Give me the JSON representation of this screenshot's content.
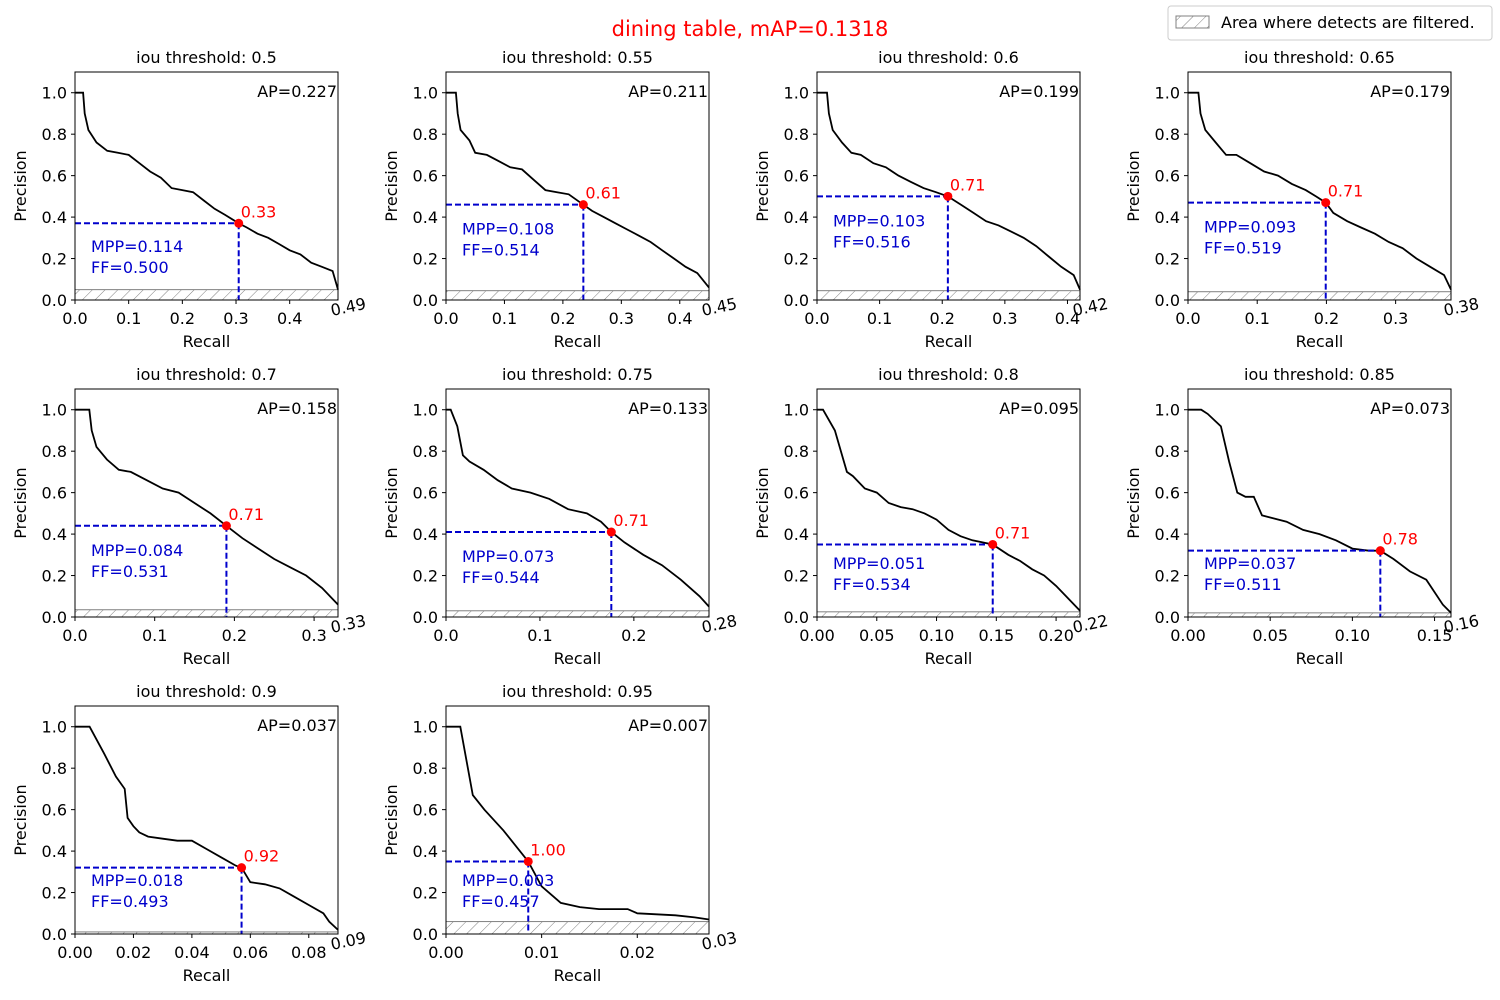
{
  "figure": {
    "title": "dining table, mAP=0.1318",
    "title_color": "#ff0000",
    "legend": {
      "label": "Area where detects are filtered.",
      "placement": "top-right"
    }
  },
  "colors": {
    "curve": "#000000",
    "marker": "#ff0000",
    "guide": "#0000cc",
    "hatch": "#808080"
  },
  "chart_data": [
    {
      "type": "line",
      "title": "iou threshold: 0.5",
      "xlabel": "Recall",
      "ylabel": "Precision",
      "xlim": [
        0,
        0.49
      ],
      "ylim": [
        0,
        1.1
      ],
      "xticks": [
        0.0,
        0.1,
        0.2,
        0.3,
        0.4
      ],
      "xtick_labels": [
        "0.0",
        "0.1",
        "0.2",
        "0.3",
        "0.4"
      ],
      "yticks": [
        0.0,
        0.2,
        0.4,
        0.6,
        0.8,
        1.0
      ],
      "ytick_labels": [
        "0.0",
        "0.2",
        "0.4",
        "0.6",
        "0.8",
        "1.0"
      ],
      "xmax_label": "0.49",
      "ap_label": "AP=0.227",
      "mpp_label": "MPP=0.114",
      "ff_label": "FF=0.500",
      "point": {
        "recall": 0.305,
        "precision": 0.37,
        "label": "0.33"
      },
      "filter_max": 0.05,
      "curve": {
        "x": [
          0,
          0.015,
          0.018,
          0.025,
          0.04,
          0.06,
          0.08,
          0.1,
          0.12,
          0.14,
          0.16,
          0.18,
          0.2,
          0.22,
          0.24,
          0.26,
          0.28,
          0.305,
          0.32,
          0.34,
          0.36,
          0.38,
          0.4,
          0.42,
          0.44,
          0.46,
          0.48,
          0.49
        ],
        "y": [
          1.0,
          1.0,
          0.9,
          0.82,
          0.76,
          0.72,
          0.71,
          0.7,
          0.66,
          0.62,
          0.59,
          0.54,
          0.53,
          0.52,
          0.48,
          0.44,
          0.41,
          0.37,
          0.35,
          0.32,
          0.3,
          0.27,
          0.24,
          0.22,
          0.18,
          0.16,
          0.14,
          0.05
        ]
      }
    },
    {
      "type": "line",
      "title": "iou threshold: 0.55",
      "xlabel": "Recall",
      "ylabel": "Precision",
      "xlim": [
        0,
        0.45
      ],
      "ylim": [
        0,
        1.1
      ],
      "xticks": [
        0.0,
        0.1,
        0.2,
        0.3,
        0.4
      ],
      "xtick_labels": [
        "0.0",
        "0.1",
        "0.2",
        "0.3",
        "0.4"
      ],
      "yticks": [
        0.0,
        0.2,
        0.4,
        0.6,
        0.8,
        1.0
      ],
      "ytick_labels": [
        "0.0",
        "0.2",
        "0.4",
        "0.6",
        "0.8",
        "1.0"
      ],
      "xmax_label": "0.45",
      "ap_label": "AP=0.211",
      "mpp_label": "MPP=0.108",
      "ff_label": "FF=0.514",
      "point": {
        "recall": 0.235,
        "precision": 0.46,
        "label": "0.61"
      },
      "filter_max": 0.045,
      "curve": {
        "x": [
          0,
          0.017,
          0.02,
          0.025,
          0.04,
          0.05,
          0.07,
          0.09,
          0.11,
          0.13,
          0.15,
          0.17,
          0.19,
          0.21,
          0.235,
          0.25,
          0.27,
          0.29,
          0.31,
          0.33,
          0.35,
          0.37,
          0.39,
          0.41,
          0.43,
          0.45
        ],
        "y": [
          1.0,
          1.0,
          0.9,
          0.82,
          0.77,
          0.71,
          0.7,
          0.67,
          0.64,
          0.63,
          0.58,
          0.53,
          0.52,
          0.51,
          0.46,
          0.43,
          0.4,
          0.37,
          0.34,
          0.31,
          0.28,
          0.24,
          0.2,
          0.16,
          0.13,
          0.06
        ]
      }
    },
    {
      "type": "line",
      "title": "iou threshold: 0.6",
      "xlabel": "Recall",
      "ylabel": "Precision",
      "xlim": [
        0,
        0.42
      ],
      "ylim": [
        0,
        1.1
      ],
      "xticks": [
        0.0,
        0.1,
        0.2,
        0.3,
        0.4
      ],
      "xtick_labels": [
        "0.0",
        "0.1",
        "0.2",
        "0.3",
        "0.4"
      ],
      "yticks": [
        0.0,
        0.2,
        0.4,
        0.6,
        0.8,
        1.0
      ],
      "ytick_labels": [
        "0.0",
        "0.2",
        "0.4",
        "0.6",
        "0.8",
        "1.0"
      ],
      "xmax_label": "0.42",
      "ap_label": "AP=0.199",
      "mpp_label": "MPP=0.103",
      "ff_label": "FF=0.516",
      "point": {
        "recall": 0.209,
        "precision": 0.5,
        "label": "0.71"
      },
      "filter_max": 0.045,
      "curve": {
        "x": [
          0,
          0.016,
          0.019,
          0.025,
          0.04,
          0.055,
          0.07,
          0.09,
          0.11,
          0.13,
          0.15,
          0.17,
          0.19,
          0.209,
          0.23,
          0.25,
          0.27,
          0.29,
          0.31,
          0.33,
          0.35,
          0.37,
          0.39,
          0.41,
          0.42
        ],
        "y": [
          1.0,
          1.0,
          0.9,
          0.82,
          0.76,
          0.71,
          0.7,
          0.66,
          0.64,
          0.6,
          0.57,
          0.54,
          0.52,
          0.5,
          0.46,
          0.42,
          0.38,
          0.36,
          0.33,
          0.3,
          0.26,
          0.21,
          0.16,
          0.12,
          0.05
        ]
      }
    },
    {
      "type": "line",
      "title": "iou threshold: 0.65",
      "xlabel": "Recall",
      "ylabel": "Precision",
      "xlim": [
        0,
        0.38
      ],
      "ylim": [
        0,
        1.1
      ],
      "xticks": [
        0.0,
        0.1,
        0.2,
        0.3
      ],
      "xtick_labels": [
        "0.0",
        "0.1",
        "0.2",
        "0.3"
      ],
      "yticks": [
        0.0,
        0.2,
        0.4,
        0.6,
        0.8,
        1.0
      ],
      "ytick_labels": [
        "0.0",
        "0.2",
        "0.4",
        "0.6",
        "0.8",
        "1.0"
      ],
      "xmax_label": "0.38",
      "ap_label": "AP=0.179",
      "mpp_label": "MPP=0.093",
      "ff_label": "FF=0.519",
      "point": {
        "recall": 0.199,
        "precision": 0.47,
        "label": "0.71"
      },
      "filter_max": 0.04,
      "curve": {
        "x": [
          0,
          0.015,
          0.018,
          0.025,
          0.04,
          0.055,
          0.07,
          0.09,
          0.11,
          0.13,
          0.15,
          0.17,
          0.185,
          0.199,
          0.21,
          0.23,
          0.25,
          0.27,
          0.29,
          0.31,
          0.33,
          0.35,
          0.37,
          0.38
        ],
        "y": [
          1.0,
          1.0,
          0.9,
          0.82,
          0.76,
          0.7,
          0.7,
          0.66,
          0.62,
          0.6,
          0.56,
          0.53,
          0.5,
          0.47,
          0.42,
          0.38,
          0.35,
          0.32,
          0.28,
          0.25,
          0.2,
          0.16,
          0.12,
          0.05
        ]
      }
    },
    {
      "type": "line",
      "title": "iou threshold: 0.7",
      "xlabel": "Recall",
      "ylabel": "Precision",
      "xlim": [
        0,
        0.33
      ],
      "ylim": [
        0,
        1.1
      ],
      "xticks": [
        0.0,
        0.1,
        0.2,
        0.3
      ],
      "xtick_labels": [
        "0.0",
        "0.1",
        "0.2",
        "0.3"
      ],
      "yticks": [
        0.0,
        0.2,
        0.4,
        0.6,
        0.8,
        1.0
      ],
      "ytick_labels": [
        "0.0",
        "0.2",
        "0.4",
        "0.6",
        "0.8",
        "1.0"
      ],
      "xmax_label": "0.33",
      "ap_label": "AP=0.158",
      "mpp_label": "MPP=0.084",
      "ff_label": "FF=0.531",
      "point": {
        "recall": 0.19,
        "precision": 0.44,
        "label": "0.71"
      },
      "filter_max": 0.035,
      "curve": {
        "x": [
          0,
          0.018,
          0.021,
          0.027,
          0.04,
          0.055,
          0.07,
          0.09,
          0.11,
          0.13,
          0.15,
          0.17,
          0.19,
          0.21,
          0.23,
          0.25,
          0.27,
          0.29,
          0.31,
          0.33
        ],
        "y": [
          1.0,
          1.0,
          0.9,
          0.82,
          0.76,
          0.71,
          0.7,
          0.66,
          0.62,
          0.6,
          0.55,
          0.5,
          0.44,
          0.38,
          0.33,
          0.28,
          0.24,
          0.2,
          0.14,
          0.06
        ]
      }
    },
    {
      "type": "line",
      "title": "iou threshold: 0.75",
      "xlabel": "Recall",
      "ylabel": "Precision",
      "xlim": [
        0,
        0.28
      ],
      "ylim": [
        0,
        1.1
      ],
      "xticks": [
        0.0,
        0.1,
        0.2
      ],
      "xtick_labels": [
        "0.0",
        "0.1",
        "0.2"
      ],
      "yticks": [
        0.0,
        0.2,
        0.4,
        0.6,
        0.8,
        1.0
      ],
      "ytick_labels": [
        "0.0",
        "0.2",
        "0.4",
        "0.6",
        "0.8",
        "1.0"
      ],
      "xmax_label": "0.28",
      "ap_label": "AP=0.133",
      "mpp_label": "MPP=0.073",
      "ff_label": "FF=0.544",
      "point": {
        "recall": 0.176,
        "precision": 0.41,
        "label": "0.71"
      },
      "filter_max": 0.03,
      "curve": {
        "x": [
          0,
          0.005,
          0.012,
          0.018,
          0.025,
          0.04,
          0.055,
          0.07,
          0.09,
          0.11,
          0.13,
          0.15,
          0.165,
          0.176,
          0.19,
          0.21,
          0.23,
          0.25,
          0.27,
          0.28
        ],
        "y": [
          1.0,
          1.0,
          0.92,
          0.78,
          0.75,
          0.71,
          0.66,
          0.62,
          0.6,
          0.57,
          0.52,
          0.5,
          0.46,
          0.41,
          0.36,
          0.3,
          0.25,
          0.18,
          0.1,
          0.05
        ]
      }
    },
    {
      "type": "line",
      "title": "iou threshold: 0.8",
      "xlabel": "Recall",
      "ylabel": "Precision",
      "xlim": [
        0,
        0.22
      ],
      "ylim": [
        0,
        1.1
      ],
      "xticks": [
        0.0,
        0.05,
        0.1,
        0.15,
        0.2
      ],
      "xtick_labels": [
        "0.00",
        "0.05",
        "0.10",
        "0.15",
        "0.20"
      ],
      "yticks": [
        0.0,
        0.2,
        0.4,
        0.6,
        0.8,
        1.0
      ],
      "ytick_labels": [
        "0.0",
        "0.2",
        "0.4",
        "0.6",
        "0.8",
        "1.0"
      ],
      "xmax_label": "0.22",
      "ap_label": "AP=0.095",
      "mpp_label": "MPP=0.051",
      "ff_label": "FF=0.534",
      "point": {
        "recall": 0.147,
        "precision": 0.35,
        "label": "0.71"
      },
      "filter_max": 0.025,
      "curve": {
        "x": [
          0,
          0.005,
          0.015,
          0.02,
          0.025,
          0.03,
          0.04,
          0.05,
          0.06,
          0.07,
          0.08,
          0.09,
          0.1,
          0.11,
          0.12,
          0.13,
          0.147,
          0.16,
          0.17,
          0.18,
          0.19,
          0.2,
          0.21,
          0.22
        ],
        "y": [
          1.0,
          1.0,
          0.9,
          0.8,
          0.7,
          0.68,
          0.62,
          0.6,
          0.55,
          0.53,
          0.52,
          0.5,
          0.47,
          0.42,
          0.39,
          0.37,
          0.35,
          0.3,
          0.27,
          0.23,
          0.2,
          0.15,
          0.09,
          0.03
        ]
      }
    },
    {
      "type": "line",
      "title": "iou threshold: 0.85",
      "xlabel": "Recall",
      "ylabel": "Precision",
      "xlim": [
        0,
        0.16
      ],
      "ylim": [
        0,
        1.1
      ],
      "xticks": [
        0.0,
        0.05,
        0.1,
        0.15
      ],
      "xtick_labels": [
        "0.00",
        "0.05",
        "0.10",
        "0.15"
      ],
      "yticks": [
        0.0,
        0.2,
        0.4,
        0.6,
        0.8,
        1.0
      ],
      "ytick_labels": [
        "0.0",
        "0.2",
        "0.4",
        "0.6",
        "0.8",
        "1.0"
      ],
      "xmax_label": "0.16",
      "ap_label": "AP=0.073",
      "mpp_label": "MPP=0.037",
      "ff_label": "FF=0.511",
      "point": {
        "recall": 0.117,
        "precision": 0.32,
        "label": "0.78"
      },
      "filter_max": 0.02,
      "curve": {
        "x": [
          0,
          0.008,
          0.012,
          0.02,
          0.025,
          0.03,
          0.035,
          0.04,
          0.045,
          0.05,
          0.06,
          0.07,
          0.08,
          0.09,
          0.1,
          0.11,
          0.117,
          0.125,
          0.135,
          0.145,
          0.155,
          0.16
        ],
        "y": [
          1.0,
          1.0,
          0.98,
          0.92,
          0.75,
          0.6,
          0.58,
          0.58,
          0.49,
          0.48,
          0.46,
          0.42,
          0.4,
          0.37,
          0.33,
          0.32,
          0.32,
          0.28,
          0.22,
          0.18,
          0.06,
          0.02
        ]
      }
    },
    {
      "type": "line",
      "title": "iou threshold: 0.9",
      "xlabel": "Recall",
      "ylabel": "Precision",
      "xlim": [
        0,
        0.09
      ],
      "ylim": [
        0,
        1.1
      ],
      "xticks": [
        0.0,
        0.02,
        0.04,
        0.06,
        0.08
      ],
      "xtick_labels": [
        "0.00",
        "0.02",
        "0.04",
        "0.06",
        "0.08"
      ],
      "yticks": [
        0.0,
        0.2,
        0.4,
        0.6,
        0.8,
        1.0
      ],
      "ytick_labels": [
        "0.0",
        "0.2",
        "0.4",
        "0.6",
        "0.8",
        "1.0"
      ],
      "xmax_label": "0.09",
      "ap_label": "AP=0.037",
      "mpp_label": "MPP=0.018",
      "ff_label": "FF=0.493",
      "point": {
        "recall": 0.057,
        "precision": 0.32,
        "label": "0.92"
      },
      "filter_max": 0.01,
      "curve": {
        "x": [
          0,
          0.005,
          0.01,
          0.014,
          0.017,
          0.018,
          0.02,
          0.022,
          0.025,
          0.03,
          0.035,
          0.04,
          0.045,
          0.05,
          0.055,
          0.057,
          0.06,
          0.065,
          0.07,
          0.075,
          0.08,
          0.085,
          0.087,
          0.09
        ],
        "y": [
          1.0,
          1.0,
          0.87,
          0.76,
          0.7,
          0.56,
          0.52,
          0.49,
          0.47,
          0.46,
          0.45,
          0.45,
          0.41,
          0.37,
          0.33,
          0.32,
          0.25,
          0.24,
          0.22,
          0.18,
          0.14,
          0.1,
          0.06,
          0.02
        ]
      }
    },
    {
      "type": "line",
      "title": "iou threshold: 0.95",
      "xlabel": "Recall",
      "ylabel": "Precision",
      "xlim": [
        0,
        0.0275
      ],
      "ylim": [
        0,
        1.1
      ],
      "xticks": [
        0.0,
        0.01,
        0.02
      ],
      "xtick_labels": [
        "0.00",
        "0.01",
        "0.02"
      ],
      "yticks": [
        0.0,
        0.2,
        0.4,
        0.6,
        0.8,
        1.0
      ],
      "ytick_labels": [
        "0.0",
        "0.2",
        "0.4",
        "0.6",
        "0.8",
        "1.0"
      ],
      "xmax_label": "0.03",
      "ap_label": "AP=0.007",
      "mpp_label": "MPP=0.003",
      "ff_label": "FF=0.457",
      "point": {
        "recall": 0.0086,
        "precision": 0.35,
        "label": "1.00"
      },
      "filter_max": 0.06,
      "curve": {
        "x": [
          0,
          0.0015,
          0.0028,
          0.004,
          0.006,
          0.0086,
          0.01,
          0.012,
          0.014,
          0.016,
          0.018,
          0.019,
          0.02,
          0.022,
          0.024,
          0.026,
          0.0275
        ],
        "y": [
          1.0,
          1.0,
          0.67,
          0.6,
          0.5,
          0.35,
          0.23,
          0.15,
          0.13,
          0.12,
          0.12,
          0.12,
          0.1,
          0.095,
          0.09,
          0.08,
          0.07
        ]
      }
    }
  ]
}
